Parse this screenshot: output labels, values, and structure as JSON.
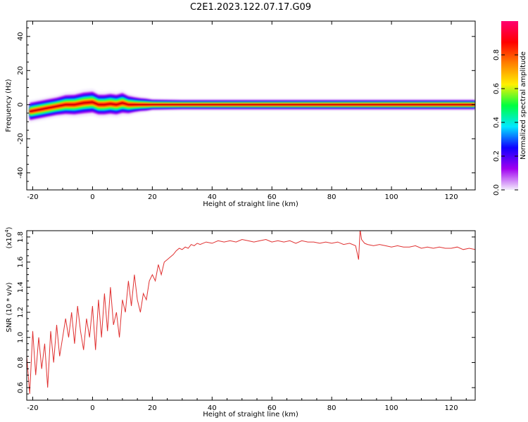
{
  "title": "C2E1.2023.122.07.17.G09",
  "chart_data": [
    {
      "type": "heatmap",
      "xlabel": "Height of straight line (km)",
      "ylabel": "Frequency (Hz)",
      "xlim": [
        -22,
        128
      ],
      "ylim": [
        -50,
        49
      ],
      "xticks": [
        -20,
        0,
        20,
        40,
        60,
        80,
        100,
        120
      ],
      "yticks": [
        -40,
        -20,
        0,
        20,
        40
      ],
      "colorbar": {
        "label": "Normalized spectral amplitude",
        "range": [
          0,
          1
        ],
        "ticks": [
          "0.0",
          "0.2",
          "0.4",
          "0.6",
          "0.8"
        ],
        "colors": [
          "#f4eefc",
          "#a000f0",
          "#1000ff",
          "#00e8ff",
          "#00ff40",
          "#fff000",
          "#ff8000",
          "#ff0000",
          "#ff0070"
        ]
      },
      "ridge": {
        "x": [
          -21,
          -18,
          -15,
          -12,
          -9,
          -6,
          -3,
          0,
          2,
          4,
          6,
          8,
          10,
          12,
          14,
          16,
          18,
          20,
          30,
          40,
          60,
          80,
          100,
          128
        ],
        "freq": [
          -4,
          -3,
          -2,
          -1,
          0,
          0,
          1,
          1.5,
          0,
          0,
          0.5,
          0,
          1,
          0,
          0,
          0,
          0,
          0,
          0,
          0,
          0,
          0,
          0,
          0
        ],
        "halfwidth": [
          3.5,
          3.5,
          3.5,
          3.5,
          3.8,
          4,
          4.2,
          4.2,
          4,
          4,
          4,
          4,
          4,
          3.5,
          3,
          2.6,
          2.4,
          2,
          1.8,
          1.8,
          1.8,
          1.8,
          1.8,
          1.8
        ]
      }
    },
    {
      "type": "line",
      "xlabel": "Height of straight line (km)",
      "ylabel": "SNR (10 * v/v)",
      "ylabel_exponent": "(x10",
      "ylabel_exponent_power": "4",
      "ylabel_exponent_close": ")",
      "xlim": [
        -22,
        128
      ],
      "ylim": [
        0.5,
        1.85
      ],
      "xticks": [
        -20,
        0,
        20,
        40,
        60,
        80,
        100,
        120
      ],
      "yticks": [
        0.6,
        0.8,
        1.0,
        1.2,
        1.4,
        1.6,
        1.8
      ],
      "ytick_labels": [
        "0.6",
        "0.8",
        "1.0",
        "1.2",
        "1.4",
        "1.6",
        "1.8"
      ],
      "line_color": "#e03030",
      "x": [
        -22,
        -21,
        -20,
        -19,
        -18,
        -17,
        -16,
        -15,
        -14,
        -13,
        -12,
        -11,
        -10,
        -9,
        -8,
        -7,
        -6,
        -5,
        -4,
        -3,
        -2,
        -1,
        0,
        1,
        2,
        3,
        4,
        5,
        6,
        7,
        8,
        9,
        10,
        11,
        12,
        13,
        14,
        15,
        16,
        17,
        18,
        19,
        20,
        21,
        22,
        23,
        24,
        25,
        26,
        27,
        28,
        29,
        30,
        31,
        32,
        33,
        34,
        35,
        36,
        38,
        40,
        42,
        44,
        46,
        48,
        50,
        52,
        54,
        56,
        58,
        60,
        62,
        64,
        66,
        68,
        70,
        72,
        74,
        76,
        78,
        80,
        82,
        84,
        86,
        88,
        89,
        89.5,
        90,
        91,
        92,
        94,
        96,
        98,
        100,
        102,
        104,
        106,
        108,
        110,
        112,
        114,
        116,
        118,
        120,
        122,
        124,
        126,
        128
      ],
      "values": [
        0.85,
        0.55,
        1.05,
        0.7,
        1.0,
        0.75,
        0.95,
        0.6,
        1.05,
        0.8,
        1.1,
        0.85,
        1.0,
        1.15,
        1.0,
        1.2,
        0.95,
        1.25,
        1.05,
        0.9,
        1.15,
        1.0,
        1.25,
        0.9,
        1.3,
        1.0,
        1.35,
        1.05,
        1.4,
        1.1,
        1.2,
        1.0,
        1.3,
        1.2,
        1.45,
        1.25,
        1.5,
        1.3,
        1.2,
        1.35,
        1.3,
        1.45,
        1.5,
        1.45,
        1.58,
        1.5,
        1.6,
        1.62,
        1.64,
        1.66,
        1.69,
        1.71,
        1.7,
        1.72,
        1.71,
        1.74,
        1.73,
        1.75,
        1.74,
        1.76,
        1.75,
        1.77,
        1.76,
        1.77,
        1.76,
        1.78,
        1.77,
        1.76,
        1.77,
        1.78,
        1.76,
        1.77,
        1.76,
        1.77,
        1.75,
        1.77,
        1.76,
        1.76,
        1.75,
        1.76,
        1.75,
        1.76,
        1.74,
        1.75,
        1.73,
        1.62,
        1.86,
        1.78,
        1.75,
        1.74,
        1.73,
        1.74,
        1.73,
        1.72,
        1.73,
        1.72,
        1.72,
        1.73,
        1.71,
        1.72,
        1.71,
        1.72,
        1.71,
        1.71,
        1.72,
        1.7,
        1.71,
        1.7
      ]
    }
  ]
}
